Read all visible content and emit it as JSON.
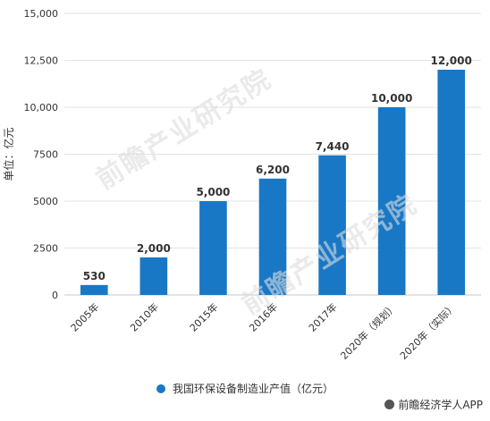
{
  "chart_data": {
    "type": "bar",
    "categories": [
      "2005年",
      "2010年",
      "2015年",
      "2016年",
      "2017年",
      "2020年（规划）",
      "2020年（实际）"
    ],
    "series": [
      {
        "name": "我国环保设备制造业产值（亿元）",
        "values": [
          530,
          2000,
          5000,
          6200,
          7440,
          10000,
          12000
        ]
      }
    ],
    "value_labels": [
      "530",
      "2,000",
      "5,000",
      "6,200",
      "7,440",
      "10,000",
      "12,000"
    ],
    "ylabel": "单位：亿元",
    "ylim": [
      0,
      15000
    ],
    "yticks": [
      0,
      2500,
      5000,
      7500,
      10000,
      12500,
      15000
    ],
    "ytick_labels": [
      "0",
      "2500",
      "5000",
      "7500",
      "10,000",
      "12,500",
      "15,000"
    ],
    "grid": true,
    "legend_position": "bottom",
    "bar_color": "#1878c6"
  },
  "watermark": "前瞻产业研究院",
  "source": "前瞻经济学人APP"
}
